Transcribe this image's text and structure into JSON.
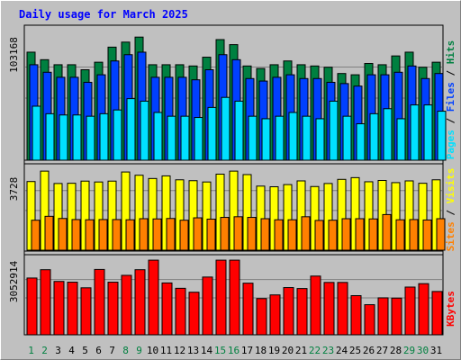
{
  "title": "Daily usage for March 2025",
  "colors": {
    "hits": "#008040",
    "files": "#0040ff",
    "pages": "#00e0ff",
    "visits": "#ffff00",
    "sites": "#ff8000",
    "kbytes": "#ff0000",
    "weekend_day": "#008040",
    "weekday": "#000000",
    "background": "#c0c0c0",
    "title": "#0000ff"
  },
  "chart_data": [
    {
      "type": "bar",
      "panel": "top",
      "x": [
        1,
        2,
        3,
        4,
        5,
        6,
        7,
        8,
        9,
        10,
        11,
        12,
        13,
        14,
        15,
        16,
        17,
        18,
        19,
        20,
        21,
        22,
        23,
        24,
        25,
        26,
        27,
        28,
        29,
        30,
        31
      ],
      "y_label": "103168",
      "y_max": 103168,
      "legend": [
        "Pages",
        "Files",
        "Hits"
      ],
      "series": [
        {
          "name": "Hits",
          "values": [
            86000,
            80000,
            76000,
            76000,
            72000,
            78000,
            90000,
            94000,
            98000,
            76000,
            76000,
            76000,
            75000,
            82000,
            96000,
            92000,
            75000,
            73000,
            76000,
            79000,
            76000,
            75000,
            74000,
            69000,
            68000,
            77000,
            76000,
            83000,
            86000,
            74000,
            78000
          ]
        },
        {
          "name": "Files",
          "values": [
            76000,
            70000,
            66000,
            66000,
            62000,
            68000,
            79000,
            84000,
            86000,
            66000,
            66000,
            66000,
            64000,
            72000,
            84000,
            80000,
            65000,
            63000,
            66000,
            68000,
            65000,
            65000,
            62000,
            61000,
            59000,
            68000,
            68000,
            70000,
            75000,
            65000,
            69000
          ]
        },
        {
          "name": "Pages",
          "values": [
            43000,
            37000,
            36000,
            36000,
            35000,
            37000,
            40000,
            49000,
            47000,
            38000,
            35000,
            35000,
            34000,
            42000,
            50000,
            47000,
            35000,
            33000,
            35000,
            38000,
            35000,
            33000,
            47000,
            35000,
            29000,
            37000,
            41000,
            33000,
            44000,
            44000,
            39000
          ]
        }
      ]
    },
    {
      "type": "bar",
      "panel": "middle",
      "x": [
        1,
        2,
        3,
        4,
        5,
        6,
        7,
        8,
        9,
        10,
        11,
        12,
        13,
        14,
        15,
        16,
        17,
        18,
        19,
        20,
        21,
        22,
        23,
        24,
        25,
        26,
        27,
        28,
        29,
        30,
        31
      ],
      "y_label": "3728",
      "y_max": 3728,
      "legend": [
        "Sites",
        "Visits"
      ],
      "series": [
        {
          "name": "Visits",
          "values": [
            3160,
            3640,
            3070,
            3080,
            3180,
            3140,
            3180,
            3600,
            3450,
            3300,
            3420,
            3240,
            3200,
            3140,
            3500,
            3640,
            3480,
            2950,
            2920,
            3020,
            3190,
            2930,
            3070,
            3260,
            3340,
            3150,
            3210,
            3110,
            3190,
            3080,
            3240
          ]
        },
        {
          "name": "Sites",
          "values": [
            1380,
            1560,
            1460,
            1410,
            1400,
            1410,
            1410,
            1400,
            1450,
            1440,
            1460,
            1380,
            1490,
            1430,
            1510,
            1540,
            1510,
            1450,
            1400,
            1400,
            1540,
            1370,
            1380,
            1450,
            1450,
            1440,
            1640,
            1400,
            1410,
            1390,
            1450
          ]
        }
      ]
    },
    {
      "type": "bar",
      "panel": "bottom",
      "x": [
        1,
        2,
        3,
        4,
        5,
        6,
        7,
        8,
        9,
        10,
        11,
        12,
        13,
        14,
        15,
        16,
        17,
        18,
        19,
        20,
        21,
        22,
        23,
        24,
        25,
        26,
        27,
        28,
        29,
        30,
        31
      ],
      "y_label": "3052914",
      "y_max": 3052914,
      "legend": [
        "KBytes"
      ],
      "series": [
        {
          "name": "KBytes",
          "values": [
            2320000,
            2660000,
            2180000,
            2150000,
            1920000,
            2670000,
            2150000,
            2430000,
            2660000,
            3050000,
            2120000,
            1900000,
            1740000,
            2360000,
            3050000,
            3050000,
            2110000,
            1480000,
            1630000,
            1930000,
            1890000,
            2400000,
            2140000,
            2140000,
            1600000,
            1230000,
            1510000,
            1500000,
            1950000,
            2090000,
            1770000
          ]
        }
      ]
    }
  ],
  "weekend_days": [
    1,
    2,
    8,
    9,
    15,
    16,
    22,
    23,
    29,
    30
  ]
}
